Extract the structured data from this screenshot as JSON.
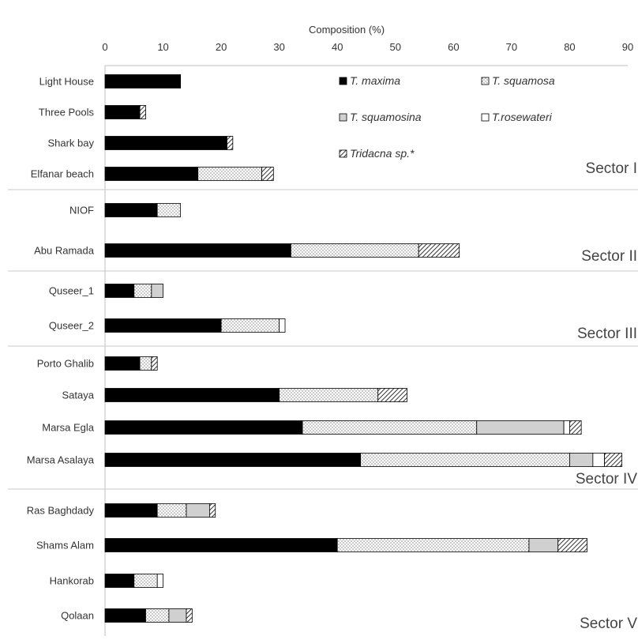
{
  "chart_data": {
    "type": "bar",
    "orientation": "horizontal",
    "stacked": true,
    "title": "",
    "xlabel": "Composition (%)",
    "ylabel": "",
    "xlim": [
      0,
      90
    ],
    "xticks": [
      0,
      10,
      20,
      30,
      40,
      50,
      60,
      70,
      80,
      90
    ],
    "grid": false,
    "legend_position": "top-right (inside plot)",
    "legend": [
      {
        "name": "T. maxima",
        "pattern": "solid"
      },
      {
        "name": "T. squamosa",
        "pattern": "dots"
      },
      {
        "name": "T. squamosina",
        "pattern": "gray"
      },
      {
        "name": "T.rosewateri",
        "pattern": "white"
      },
      {
        "name": "Tridacna sp.*",
        "pattern": "hatch"
      }
    ],
    "sectors": [
      {
        "label": "Sector I",
        "sites": [
          {
            "name": "Light House",
            "values": [
              13,
              0,
              0,
              0,
              0
            ]
          },
          {
            "name": "Three Pools",
            "values": [
              6,
              0,
              0,
              0,
              1
            ]
          },
          {
            "name": "Shark bay",
            "values": [
              21,
              0,
              0,
              0,
              1
            ]
          },
          {
            "name": "Elfanar beach",
            "values": [
              16,
              11,
              0,
              0,
              2
            ]
          }
        ]
      },
      {
        "label": "Sector II",
        "sites": [
          {
            "name": "NIOF",
            "values": [
              9,
              4,
              0,
              0,
              0
            ]
          },
          {
            "name": "Abu Ramada",
            "values": [
              32,
              22,
              0,
              0,
              7
            ]
          }
        ]
      },
      {
        "label": "Sector III",
        "sites": [
          {
            "name": "Quseer_1",
            "values": [
              5,
              3,
              2,
              0,
              0
            ]
          },
          {
            "name": "Quseer_2",
            "values": [
              20,
              10,
              0,
              1,
              0
            ]
          }
        ]
      },
      {
        "label": "Sector IV",
        "sites": [
          {
            "name": "Porto Ghalib",
            "values": [
              6,
              2,
              0,
              0,
              1
            ]
          },
          {
            "name": "Sataya",
            "values": [
              30,
              17,
              0,
              0,
              5
            ]
          },
          {
            "name": "Marsa Egla",
            "values": [
              34,
              30,
              15,
              1,
              2
            ]
          },
          {
            "name": "Marsa Asalaya",
            "values": [
              44,
              36,
              4,
              2,
              3
            ]
          }
        ]
      },
      {
        "label": "Sector V",
        "sites": [
          {
            "name": "Ras Baghdady",
            "values": [
              9,
              5,
              4,
              0,
              1
            ]
          },
          {
            "name": "Shams Alam",
            "values": [
              40,
              33,
              5,
              0,
              5
            ]
          },
          {
            "name": "Hankorab",
            "values": [
              5,
              4,
              0,
              1,
              0
            ]
          },
          {
            "name": "Qolaan",
            "values": [
              7,
              4,
              3,
              0,
              1
            ]
          }
        ]
      }
    ]
  }
}
